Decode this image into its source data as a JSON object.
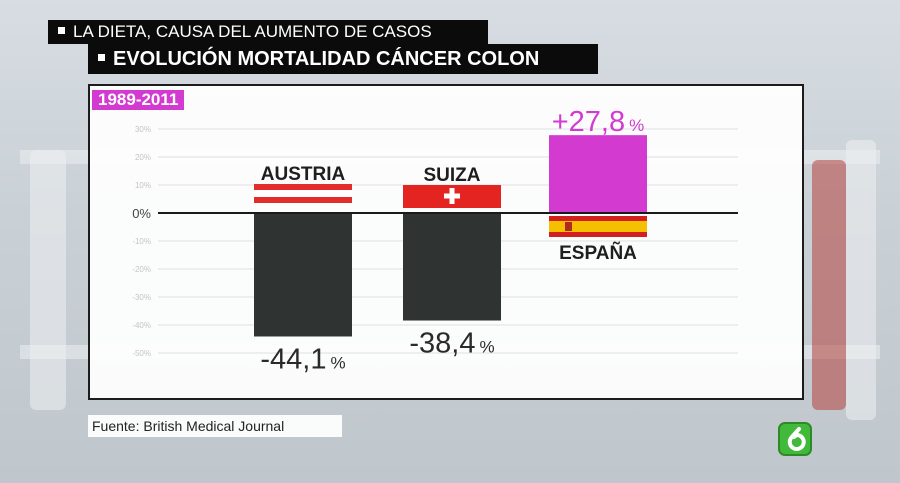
{
  "headline": {
    "line1": "LA DIETA, CAUSA DEL AUMENTO DE CASOS",
    "line2": "EVOLUCIÓN MORTALIDAD CÁNCER COLON"
  },
  "period_label": "1989-2011",
  "source": "Fuente: British Medical Journal",
  "colors": {
    "negative_bar": "#2f3331",
    "positive_bar": "#d23ad0",
    "austria_red": "#e32d2d",
    "suiza_red": "#e32420",
    "spain_red": "#d41f1f",
    "spain_yellow": "#f4c000"
  },
  "icons": {
    "logo": "lasexta-logo-icon",
    "square": "square-bullet-icon"
  },
  "chart_data": {
    "type": "bar",
    "categories": [
      "AUSTRIA",
      "SUIZA",
      "ESPAÑA"
    ],
    "values": [
      -44.1,
      -38.4,
      27.8
    ],
    "value_labels": [
      "-44,1",
      "-38,4",
      "+27,8"
    ],
    "value_unit": "%",
    "y_ticks": [
      30,
      20,
      10,
      0,
      -10,
      -20,
      -30,
      -40,
      -50
    ],
    "y_tick_labels": [
      "30%",
      "20%",
      "10%",
      "0%",
      "-10%",
      "-20%",
      "-30%",
      "-40%",
      "-50%"
    ],
    "ylim": [
      -55,
      32
    ],
    "grid": true
  }
}
